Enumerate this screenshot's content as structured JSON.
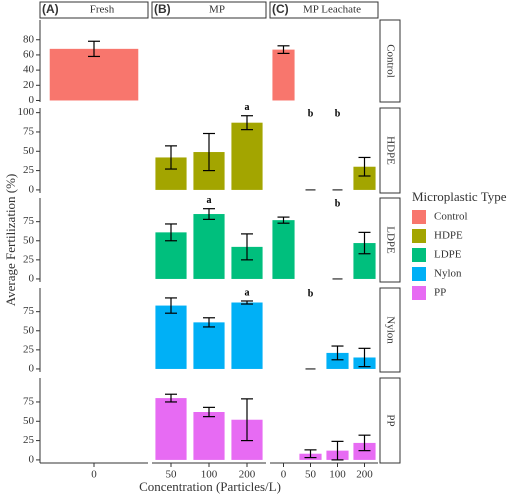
{
  "chart_data": {
    "type": "bar",
    "y_label": "Average Fertilization (%)",
    "x_label": "Concentration (Particles/L)",
    "legend_title": "Microplastic Type",
    "columns": [
      {
        "tag": "(A)",
        "title": "Fresh",
        "categories": [
          "0"
        ]
      },
      {
        "tag": "(B)",
        "title": "MP",
        "categories": [
          "50",
          "100",
          "200"
        ]
      },
      {
        "tag": "(C)",
        "title": "MP Leachate",
        "categories": [
          "0",
          "50",
          "100",
          "200"
        ]
      }
    ],
    "rows": [
      {
        "name": "Control",
        "color": "#f8766d",
        "ylim": [
          -2,
          106
        ],
        "yticks": [
          0,
          20,
          40,
          60,
          80
        ],
        "cells": [
          {
            "values": [
              68
            ],
            "errors": [
              10
            ],
            "annotations": [
              null
            ]
          },
          {
            "values": [
              null,
              null,
              null
            ],
            "errors": [
              null,
              null,
              null
            ],
            "annotations": [
              null,
              null,
              null
            ]
          },
          {
            "values": [
              67,
              null,
              null,
              null
            ],
            "errors": [
              5,
              null,
              null,
              null
            ],
            "annotations": [
              null,
              null,
              null,
              null
            ]
          }
        ]
      },
      {
        "name": "HDPE",
        "color": "#a3a500",
        "ylim": [
          -4,
          106
        ],
        "yticks": [
          0,
          25,
          50,
          75,
          100
        ],
        "cells": [
          {
            "values": [
              null
            ],
            "errors": [
              null
            ],
            "annotations": [
              null
            ]
          },
          {
            "values": [
              42,
              49,
              87
            ],
            "errors": [
              15,
              24,
              9
            ],
            "annotations": [
              null,
              null,
              "a"
            ]
          },
          {
            "values": [
              null,
              0,
              0,
              30
            ],
            "errors": [
              null,
              null,
              null,
              12
            ],
            "annotations": [
              null,
              "b",
              "b",
              null
            ]
          }
        ]
      },
      {
        "name": "LDPE",
        "color": "#00bf7d",
        "ylim": [
          -4,
          106
        ],
        "yticks": [
          0,
          25,
          50,
          75
        ],
        "cells": [
          {
            "values": [
              null
            ],
            "errors": [
              null
            ],
            "annotations": [
              null
            ]
          },
          {
            "values": [
              61,
              85,
              42
            ],
            "errors": [
              11,
              7,
              17
            ],
            "annotations": [
              null,
              "a",
              null
            ]
          },
          {
            "values": [
              77,
              null,
              0,
              47
            ],
            "errors": [
              4,
              null,
              null,
              14
            ],
            "annotations": [
              null,
              null,
              "b",
              null
            ]
          }
        ]
      },
      {
        "name": "Nylon",
        "color": "#00b0f6",
        "ylim": [
          -4,
          106
        ],
        "yticks": [
          0,
          25,
          50,
          75
        ],
        "cells": [
          {
            "values": [
              null
            ],
            "errors": [
              null
            ],
            "annotations": [
              null
            ]
          },
          {
            "values": [
              83,
              61,
              87
            ],
            "errors": [
              10,
              6,
              2
            ],
            "annotations": [
              null,
              null,
              "a"
            ]
          },
          {
            "values": [
              null,
              0,
              21,
              15
            ],
            "errors": [
              null,
              null,
              9,
              12
            ],
            "annotations": [
              null,
              "b",
              null,
              null
            ]
          }
        ]
      },
      {
        "name": "PP",
        "color": "#e76bf3",
        "ylim": [
          -4,
          106
        ],
        "yticks": [
          0,
          25,
          50,
          75
        ],
        "cells": [
          {
            "values": [
              null
            ],
            "errors": [
              null
            ],
            "annotations": [
              null
            ]
          },
          {
            "values": [
              80,
              62,
              52
            ],
            "errors": [
              5,
              6,
              27
            ],
            "annotations": [
              null,
              null,
              null
            ]
          },
          {
            "values": [
              null,
              8,
              12,
              22
            ],
            "errors": [
              null,
              5,
              12,
              10
            ],
            "annotations": [
              null,
              null,
              null,
              null
            ]
          }
        ]
      }
    ]
  }
}
